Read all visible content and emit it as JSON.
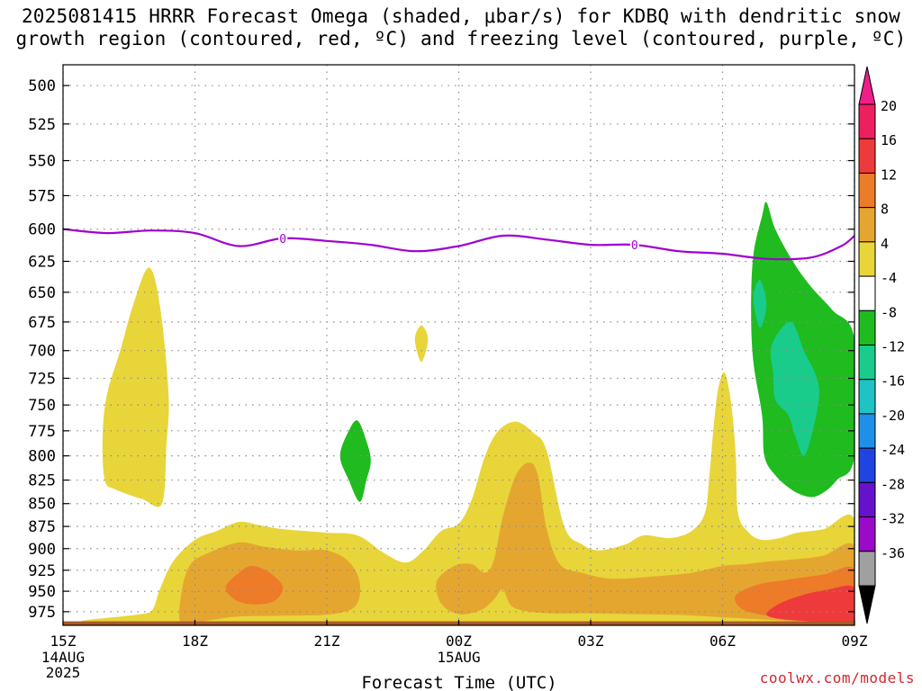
{
  "title": {
    "line1": "2025081415 HRRR Forecast Omega (shaded, μbar/s) for KDBQ with dendritic snow",
    "line2": "growth region (contoured, red, ºC) and freezing level (contoured, purple, ºC)"
  },
  "credit": "coolwx.com/models",
  "chart_data": {
    "type": "contour",
    "title": "2025081415 HRRR Forecast Omega (shaded, μbar/s) for KDBQ with dendritic snow growth region (contoured, red, ºC) and freezing level (contoured, purple, ºC)",
    "xlabel": "Forecast Time (UTC)",
    "ylabel": "",
    "x_axis": {
      "range_hours": [
        15,
        33
      ],
      "ticks": [
        {
          "h": 15,
          "label": "15Z",
          "sub": [
            "14AUG",
            "2025"
          ]
        },
        {
          "h": 18,
          "label": "18Z",
          "sub": []
        },
        {
          "h": 21,
          "label": "21Z",
          "sub": []
        },
        {
          "h": 24,
          "label": "00Z",
          "sub": [
            "15AUG"
          ]
        },
        {
          "h": 27,
          "label": "03Z",
          "sub": []
        },
        {
          "h": 30,
          "label": "06Z",
          "sub": []
        },
        {
          "h": 33,
          "label": "09Z",
          "sub": []
        }
      ]
    },
    "y_axis": {
      "range_hpa": [
        487,
        992
      ],
      "inverted": true,
      "scale": "log-pressure",
      "ticks": [
        500,
        525,
        550,
        575,
        600,
        625,
        650,
        675,
        700,
        725,
        750,
        775,
        800,
        825,
        850,
        875,
        900,
        925,
        950,
        975
      ]
    },
    "grid": true,
    "colorbar": {
      "labels": [
        "20",
        "16",
        "12",
        "8",
        "4",
        "-4",
        "-8",
        "-12",
        "-16",
        "-20",
        "-24",
        "-28",
        "-32",
        "-36"
      ],
      "colors": [
        "#ee1f5e",
        "#ee3a3a",
        "#ee7b28",
        "#e5a630",
        "#e8d53a",
        "#ffffff",
        "#1fbb1f",
        "#19cc8c",
        "#1fc3c3",
        "#1f90e8",
        "#1f44e0",
        "#6612cc",
        "#9a0ac8",
        "#a0a0a0"
      ],
      "top_arrow_color": "#ee1f8a",
      "bottom_arrow_color": "#000000"
    },
    "freezing_level": {
      "color": "#a000d0",
      "label": "0",
      "label_hours": [
        20.0,
        28.0
      ],
      "points": [
        [
          15.0,
          600
        ],
        [
          16.0,
          603
        ],
        [
          17.0,
          601
        ],
        [
          18.0,
          603
        ],
        [
          19.0,
          613
        ],
        [
          20.0,
          607
        ],
        [
          21.0,
          609
        ],
        [
          22.0,
          612
        ],
        [
          23.0,
          617
        ],
        [
          24.0,
          613
        ],
        [
          25.0,
          605
        ],
        [
          26.0,
          608
        ],
        [
          27.0,
          612
        ],
        [
          28.0,
          612
        ],
        [
          29.0,
          617
        ],
        [
          30.0,
          619
        ],
        [
          31.0,
          623
        ],
        [
          32.0,
          622
        ],
        [
          32.7,
          613
        ],
        [
          33.0,
          605
        ]
      ]
    },
    "omega_regions": [
      {
        "level": "4",
        "color": "#e8d53a",
        "points": [
          [
            16.5,
            990
          ],
          [
            17.0,
            975
          ],
          [
            17.2,
            948
          ],
          [
            17.5,
            915
          ],
          [
            18.0,
            890
          ],
          [
            18.5,
            880
          ],
          [
            19.0,
            870
          ],
          [
            19.5,
            874
          ],
          [
            20.0,
            878
          ],
          [
            21.0,
            882
          ],
          [
            21.7,
            885
          ],
          [
            22.3,
            905
          ],
          [
            22.8,
            916
          ],
          [
            23.2,
            902
          ],
          [
            23.6,
            880
          ],
          [
            24.0,
            872
          ],
          [
            24.3,
            845
          ],
          [
            24.6,
            800
          ],
          [
            24.9,
            775
          ],
          [
            25.3,
            766
          ],
          [
            25.7,
            777
          ],
          [
            26.0,
            795
          ],
          [
            26.4,
            875
          ],
          [
            26.8,
            895
          ],
          [
            27.2,
            902
          ],
          [
            27.8,
            895
          ],
          [
            28.2,
            885
          ],
          [
            28.8,
            888
          ],
          [
            29.3,
            880
          ],
          [
            29.6,
            860
          ],
          [
            29.7,
            820
          ],
          [
            29.8,
            770
          ],
          [
            29.9,
            735
          ],
          [
            30.05,
            720
          ],
          [
            30.2,
            750
          ],
          [
            30.3,
            800
          ],
          [
            30.35,
            860
          ],
          [
            30.6,
            882
          ],
          [
            30.9,
            890
          ],
          [
            31.3,
            888
          ],
          [
            31.7,
            882
          ],
          [
            32.3,
            878
          ],
          [
            33.0,
            868
          ],
          [
            33.0,
            990
          ]
        ]
      },
      {
        "level": "4",
        "color": "#e8d53a",
        "points": [
          [
            16.0,
            740
          ],
          [
            16.3,
            700
          ],
          [
            16.6,
            660
          ],
          [
            16.95,
            630
          ],
          [
            17.2,
            660
          ],
          [
            17.4,
            740
          ],
          [
            17.35,
            790
          ],
          [
            17.25,
            850
          ],
          [
            16.8,
            845
          ],
          [
            16.2,
            835
          ],
          [
            15.95,
            825
          ],
          [
            15.9,
            780
          ]
        ]
      },
      {
        "level": "4",
        "color": "#e8d53a",
        "points": [
          [
            23.0,
            690
          ],
          [
            23.15,
            678
          ],
          [
            23.3,
            690
          ],
          [
            23.15,
            710
          ]
        ]
      },
      {
        "level": "8",
        "color": "#e5a630",
        "points": [
          [
            17.7,
            990
          ],
          [
            17.7,
            950
          ],
          [
            17.9,
            918
          ],
          [
            18.3,
            905
          ],
          [
            19.0,
            893
          ],
          [
            19.6,
            898
          ],
          [
            20.3,
            902
          ],
          [
            21.0,
            902
          ],
          [
            21.5,
            915
          ],
          [
            21.75,
            940
          ],
          [
            21.65,
            968
          ],
          [
            21.1,
            978
          ],
          [
            20.0,
            980
          ],
          [
            19.0,
            981
          ],
          [
            18.4,
            985
          ]
        ]
      },
      {
        "level": "8",
        "color": "#e5a630",
        "points": [
          [
            23.5,
            938
          ],
          [
            23.9,
            920
          ],
          [
            24.3,
            918
          ],
          [
            24.6,
            928
          ],
          [
            24.8,
            913
          ],
          [
            25.0,
            865
          ],
          [
            25.3,
            820
          ],
          [
            25.6,
            807
          ],
          [
            25.8,
            820
          ],
          [
            26.0,
            878
          ],
          [
            26.3,
            918
          ],
          [
            26.8,
            928
          ],
          [
            27.5,
            935
          ],
          [
            28.5,
            932
          ],
          [
            29.3,
            928
          ],
          [
            30.0,
            920
          ],
          [
            30.5,
            918
          ],
          [
            31.0,
            915
          ],
          [
            31.7,
            912
          ],
          [
            32.3,
            908
          ],
          [
            33.0,
            898
          ],
          [
            33.0,
            990
          ],
          [
            32.0,
            988
          ],
          [
            31.0,
            985
          ],
          [
            30.0,
            982
          ],
          [
            29.0,
            979
          ],
          [
            28.0,
            978
          ],
          [
            27.0,
            977
          ],
          [
            26.2,
            977
          ],
          [
            25.6,
            975
          ],
          [
            25.2,
            968
          ],
          [
            25.0,
            948
          ],
          [
            24.8,
            960
          ],
          [
            24.5,
            973
          ],
          [
            24.0,
            978
          ],
          [
            23.6,
            965
          ]
        ]
      },
      {
        "level": "12",
        "color": "#ee7b28",
        "points": [
          [
            18.7,
            945
          ],
          [
            19.0,
            928
          ],
          [
            19.3,
            920
          ],
          [
            19.7,
            928
          ],
          [
            20.0,
            945
          ],
          [
            19.8,
            962
          ],
          [
            19.3,
            966
          ],
          [
            18.9,
            960
          ]
        ]
      },
      {
        "level": "12",
        "color": "#ee7b28",
        "points": [
          [
            30.3,
            955
          ],
          [
            30.8,
            942
          ],
          [
            31.5,
            936
          ],
          [
            32.3,
            930
          ],
          [
            33.0,
            924
          ],
          [
            33.0,
            988
          ],
          [
            31.5,
            982
          ],
          [
            30.8,
            978
          ],
          [
            30.4,
            970
          ]
        ]
      },
      {
        "level": "16",
        "color": "#ee3a3a",
        "points": [
          [
            31.0,
            978
          ],
          [
            31.3,
            965
          ],
          [
            31.8,
            955
          ],
          [
            32.4,
            948
          ],
          [
            33.0,
            946
          ],
          [
            33.0,
            990
          ],
          [
            32.0,
            987
          ],
          [
            31.3,
            984
          ]
        ]
      },
      {
        "level": "-4",
        "color": "#1fbb1f",
        "points": [
          [
            30.65,
            665
          ],
          [
            30.7,
            620
          ],
          [
            30.9,
            590
          ],
          [
            31.0,
            580
          ],
          [
            31.2,
            600
          ],
          [
            31.6,
            625
          ],
          [
            32.0,
            645
          ],
          [
            32.5,
            665
          ],
          [
            33.0,
            690
          ],
          [
            33.0,
            800
          ],
          [
            32.6,
            825
          ],
          [
            32.3,
            838
          ],
          [
            32.0,
            843
          ],
          [
            31.6,
            836
          ],
          [
            31.2,
            820
          ],
          [
            30.95,
            800
          ],
          [
            30.9,
            760
          ],
          [
            30.7,
            710
          ]
        ]
      },
      {
        "level": "-4",
        "color": "#1fbb1f",
        "points": [
          [
            21.3,
            800
          ],
          [
            21.5,
            775
          ],
          [
            21.7,
            765
          ],
          [
            21.9,
            785
          ],
          [
            22.0,
            805
          ],
          [
            21.9,
            825
          ],
          [
            21.75,
            848
          ],
          [
            21.5,
            825
          ]
        ]
      },
      {
        "level": "-8",
        "color": "#19cc8c",
        "points": [
          [
            31.1,
            698
          ],
          [
            31.35,
            680
          ],
          [
            31.6,
            676
          ],
          [
            31.85,
            700
          ],
          [
            32.1,
            720
          ],
          [
            32.2,
            740
          ],
          [
            32.05,
            775
          ],
          [
            31.85,
            800
          ],
          [
            31.65,
            780
          ],
          [
            31.5,
            760
          ],
          [
            31.2,
            745
          ],
          [
            31.15,
            720
          ]
        ]
      },
      {
        "level": "-8",
        "color": "#19cc8c",
        "points": [
          [
            30.7,
            655
          ],
          [
            30.85,
            640
          ],
          [
            31.0,
            660
          ],
          [
            30.85,
            680
          ]
        ]
      }
    ],
    "ground_color": "#a85a28",
    "ground_top_hpa": 987
  }
}
